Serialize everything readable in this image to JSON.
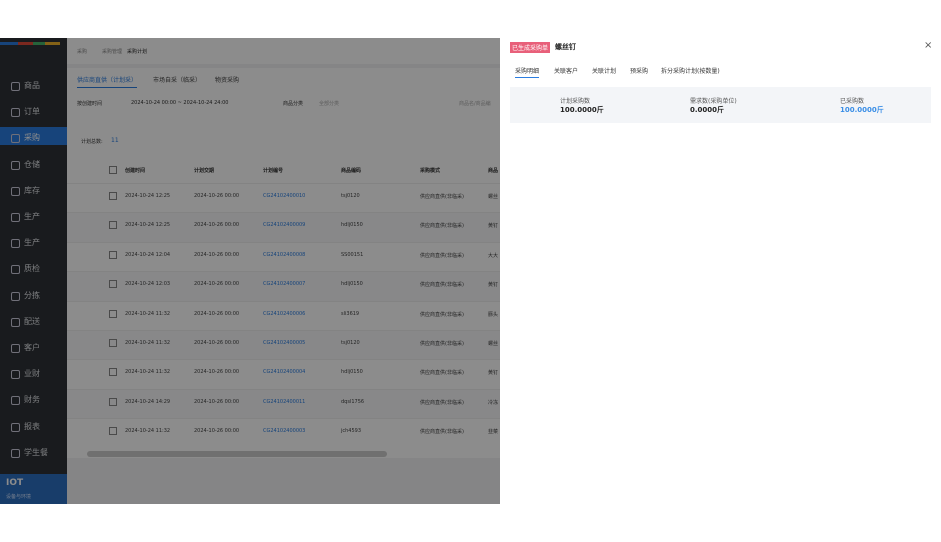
{
  "sidebar": {
    "items": [
      "商品",
      "订单",
      "采购",
      "仓储",
      "库存",
      "生产",
      "生产",
      "质检",
      "分拣",
      "配送",
      "客户",
      "业财",
      "财务",
      "报表",
      "学生餐"
    ],
    "brand": "IOT",
    "brand_sub": "设备与环境"
  },
  "breadcrumb": [
    "采购",
    "采购管理",
    "采购计划"
  ],
  "tabs": [
    "供应商直供（计划采）",
    "市场自采（临采）",
    "物资采购"
  ],
  "filters": {
    "time_type": "按创建时间",
    "range": "2024-10-24 00:00 ~ 2024-10-24 24:00",
    "category_label": "商品分类",
    "category": "全部分类",
    "search": "商品名/商品编"
  },
  "count": {
    "label": "计划总数:",
    "value": "11"
  },
  "table": {
    "headers": [
      "创建时间",
      "计划交期",
      "计划编号",
      "商品编码",
      "采购模式",
      "商品"
    ],
    "rows": [
      [
        "2024-10-24 12:25",
        "2024-10-26 00:00",
        "CG24102400010",
        "tsj0120",
        "供应商直供(非临采)",
        "螺丝"
      ],
      [
        "2024-10-24 12:25",
        "2024-10-26 00:00",
        "CG24102400009",
        "hdlj0150",
        "供应商直供(非临采)",
        "黄钉"
      ],
      [
        "2024-10-24 12:04",
        "2024-10-26 00:00",
        "CG24102400008",
        "SS00151",
        "供应商直供(非临采)",
        "大大"
      ],
      [
        "2024-10-24 12:03",
        "2024-10-26 00:00",
        "CG24102400007",
        "hdlj0150",
        "供应商直供(非临采)",
        "黄钉"
      ],
      [
        "2024-10-24 11:32",
        "2024-10-26 00:00",
        "CG24102400006",
        "sli3619",
        "供应商直供(非临采)",
        "豚头"
      ],
      [
        "2024-10-24 11:32",
        "2024-10-26 00:00",
        "CG24102400005",
        "tsj0120",
        "供应商直供(非临采)",
        "螺丝"
      ],
      [
        "2024-10-24 11:32",
        "2024-10-26 00:00",
        "CG24102400004",
        "hdlj0150",
        "供应商直供(非临采)",
        "黄钉"
      ],
      [
        "2024-10-24 14:29",
        "2024-10-26 00:00",
        "CG24102400011",
        "dqsl1756",
        "供应商直供(非临采)",
        "冷冻"
      ],
      [
        "2024-10-24 11:32",
        "2024-10-26 00:00",
        "CG24102400003",
        "jch4593",
        "供应商直供(非临采)",
        "韭菜"
      ]
    ]
  },
  "drawer": {
    "tag": "已生成采购单",
    "title": "螺丝钉",
    "close": "×",
    "tabs": [
      "采购明细",
      "关联客户",
      "关联计划",
      "预采购",
      "拆分采购计划(按数量)"
    ],
    "stats": [
      {
        "label": "计划采购数",
        "value": "100.0000斤"
      },
      {
        "label": "需求数(采购单位)",
        "value": "0.0000斤"
      },
      {
        "label": "已采购数",
        "value": "100.0000斤"
      }
    ]
  }
}
